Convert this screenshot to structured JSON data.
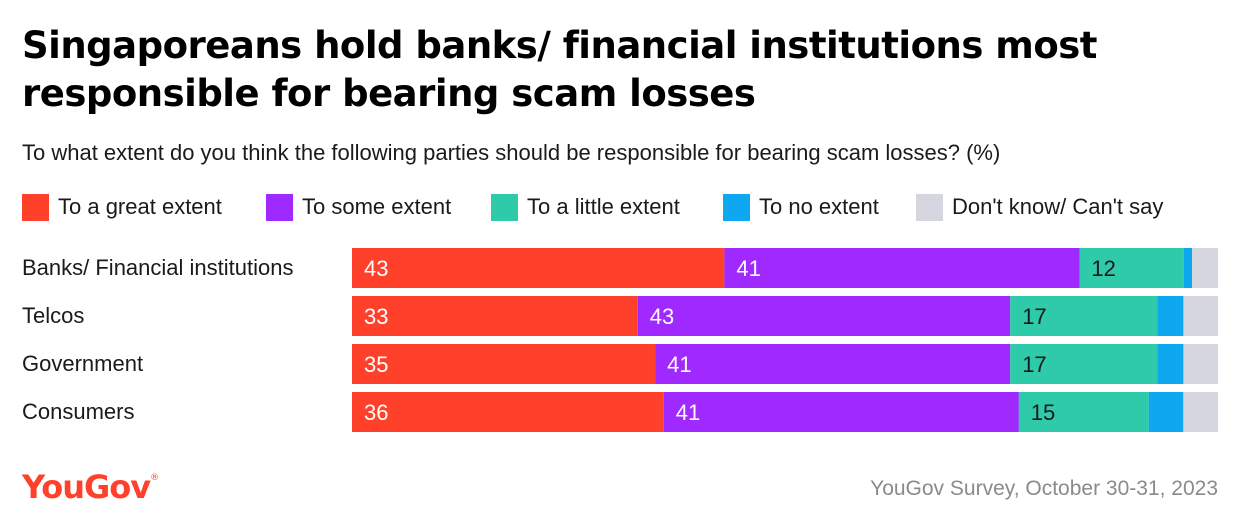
{
  "header": {
    "title": "Singaporeans hold banks/ financial institutions most responsible for bearing scam losses",
    "subtitle": "To what extent do you think the following parties should be responsible for bearing scam losses? (%)"
  },
  "footer": {
    "logo_text": "YouGov",
    "logo_mark": "®",
    "source": "YouGov Survey, October 30-31, 2023"
  },
  "chart_data": {
    "type": "bar",
    "orientation": "horizontal",
    "stacked": true,
    "categories": [
      "Banks/ Financial institutions",
      "Telcos",
      "Government",
      "Consumers"
    ],
    "series": [
      {
        "name": "To a great extent",
        "color": "#ff412c",
        "values": [
          43,
          33,
          35,
          36
        ],
        "labeled": true
      },
      {
        "name": "To some extent",
        "color": "#9f29ff",
        "values": [
          41,
          43,
          41,
          41
        ],
        "labeled": true
      },
      {
        "name": "To a little extent",
        "color": "#2fcaa9",
        "values": [
          12,
          17,
          17,
          15
        ],
        "labeled": true
      },
      {
        "name": "To no extent",
        "color": "#0da8f0",
        "values": [
          1,
          3,
          3,
          4
        ],
        "labeled": false
      },
      {
        "name": "Don't know/ Can't say",
        "color": "#d5d6e0",
        "values": [
          3,
          4,
          4,
          4
        ],
        "labeled": false
      }
    ],
    "xlim": [
      0,
      100
    ],
    "legend": "top",
    "grid": false
  }
}
